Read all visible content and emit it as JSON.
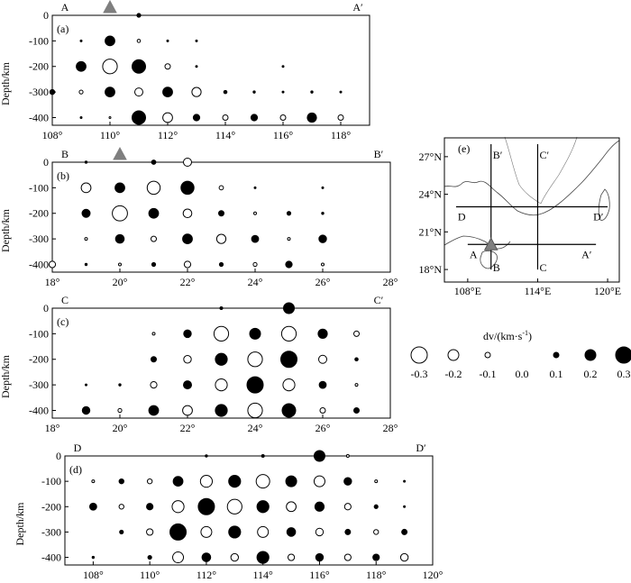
{
  "figure_label": "",
  "chart_data": [
    {
      "id": "a",
      "type": "scatter",
      "panel_label": "(a)",
      "start_label": "A",
      "end_label": "A′",
      "xlabel": "",
      "ylabel": "Depth/km",
      "xlim": [
        108,
        119
      ],
      "ylim": [
        0,
        430
      ],
      "xticks": [
        108,
        110,
        112,
        114,
        116,
        118
      ],
      "xtick_labels": [
        "108°",
        "110°",
        "112°",
        "114°",
        "116°",
        "118°"
      ],
      "yticks": [
        0,
        100,
        200,
        300,
        400
      ],
      "ytick_labels": [
        "0",
        "-100",
        "-200",
        "-300",
        "-400"
      ],
      "volcano_x": 110,
      "points": [
        {
          "x": 111,
          "depth": 0,
          "dv": 0.07
        },
        {
          "x": 109,
          "depth": 100,
          "dv": 0.03
        },
        {
          "x": 110,
          "depth": 100,
          "dv": 0.18
        },
        {
          "x": 111,
          "depth": 100,
          "dv": -0.06
        },
        {
          "x": 112,
          "depth": 100,
          "dv": 0.02
        },
        {
          "x": 113,
          "depth": 100,
          "dv": 0.01
        },
        {
          "x": 109,
          "depth": 200,
          "dv": 0.18
        },
        {
          "x": 110,
          "depth": 200,
          "dv": -0.27
        },
        {
          "x": 111,
          "depth": 200,
          "dv": 0.25
        },
        {
          "x": 112,
          "depth": 200,
          "dv": -0.1
        },
        {
          "x": 113,
          "depth": 200,
          "dv": 0.03
        },
        {
          "x": 116,
          "depth": 200,
          "dv": 0.01
        },
        {
          "x": 108,
          "depth": 300,
          "dv": 0.09
        },
        {
          "x": 109,
          "depth": 300,
          "dv": -0.07
        },
        {
          "x": 110,
          "depth": 300,
          "dv": 0.18
        },
        {
          "x": 111,
          "depth": 300,
          "dv": -0.15
        },
        {
          "x": 112,
          "depth": 300,
          "dv": 0.18
        },
        {
          "x": 113,
          "depth": 300,
          "dv": -0.17
        },
        {
          "x": 114,
          "depth": 300,
          "dv": 0.06
        },
        {
          "x": 115,
          "depth": 300,
          "dv": 0.04
        },
        {
          "x": 116,
          "depth": 300,
          "dv": 0.03
        },
        {
          "x": 117,
          "depth": 300,
          "dv": 0.04
        },
        {
          "x": 118,
          "depth": 300,
          "dv": 0.02
        },
        {
          "x": 109,
          "depth": 400,
          "dv": 0.02
        },
        {
          "x": 110,
          "depth": 400,
          "dv": -0.02
        },
        {
          "x": 111,
          "depth": 400,
          "dv": 0.25
        },
        {
          "x": 112,
          "depth": 400,
          "dv": -0.18
        },
        {
          "x": 113,
          "depth": 400,
          "dv": 0.12
        },
        {
          "x": 114,
          "depth": 400,
          "dv": -0.1
        },
        {
          "x": 115,
          "depth": 400,
          "dv": 0.12
        },
        {
          "x": 116,
          "depth": 400,
          "dv": -0.1
        },
        {
          "x": 117,
          "depth": 400,
          "dv": 0.17
        },
        {
          "x": 118,
          "depth": 400,
          "dv": -0.1
        }
      ]
    },
    {
      "id": "b",
      "type": "scatter",
      "panel_label": "(b)",
      "start_label": "B",
      "end_label": "B′",
      "xlabel": "",
      "ylabel": "Depth/km",
      "xlim": [
        18,
        28
      ],
      "ylim": [
        0,
        430
      ],
      "xticks": [
        18,
        20,
        22,
        24,
        26,
        28
      ],
      "xtick_labels": [
        "18°",
        "20°",
        "22°",
        "24°",
        "26°",
        "28°"
      ],
      "yticks": [
        0,
        100,
        200,
        300,
        400
      ],
      "ytick_labels": [
        "0",
        "-100",
        "-200",
        "-300",
        "-400"
      ],
      "volcano_x": 20,
      "points": [
        {
          "x": 19,
          "depth": 0,
          "dv": 0.04
        },
        {
          "x": 21,
          "depth": 0,
          "dv": 0.08
        },
        {
          "x": 22,
          "depth": 0,
          "dv": -0.15
        },
        {
          "x": 19,
          "depth": 100,
          "dv": -0.18
        },
        {
          "x": 20,
          "depth": 100,
          "dv": 0.18
        },
        {
          "x": 21,
          "depth": 100,
          "dv": -0.24
        },
        {
          "x": 22,
          "depth": 100,
          "dv": 0.24
        },
        {
          "x": 23,
          "depth": 100,
          "dv": -0.08
        },
        {
          "x": 24,
          "depth": 100,
          "dv": 0.03
        },
        {
          "x": 26,
          "depth": 100,
          "dv": 0.02
        },
        {
          "x": 19,
          "depth": 200,
          "dv": 0.15
        },
        {
          "x": 20,
          "depth": 200,
          "dv": -0.28
        },
        {
          "x": 21,
          "depth": 200,
          "dv": 0.18
        },
        {
          "x": 22,
          "depth": 200,
          "dv": -0.16
        },
        {
          "x": 23,
          "depth": 200,
          "dv": 0.1
        },
        {
          "x": 24,
          "depth": 200,
          "dv": -0.05
        },
        {
          "x": 25,
          "depth": 200,
          "dv": 0.07
        },
        {
          "x": 26,
          "depth": 200,
          "dv": 0.04
        },
        {
          "x": 19,
          "depth": 300,
          "dv": -0.05
        },
        {
          "x": 20,
          "depth": 300,
          "dv": 0.16
        },
        {
          "x": 21,
          "depth": 300,
          "dv": -0.1
        },
        {
          "x": 22,
          "depth": 300,
          "dv": 0.18
        },
        {
          "x": 23,
          "depth": 300,
          "dv": -0.17
        },
        {
          "x": 24,
          "depth": 300,
          "dv": 0.13
        },
        {
          "x": 25,
          "depth": 300,
          "dv": -0.05
        },
        {
          "x": 26,
          "depth": 300,
          "dv": 0.14
        },
        {
          "x": 18,
          "depth": 400,
          "dv": -0.12
        },
        {
          "x": 19,
          "depth": 400,
          "dv": 0.04
        },
        {
          "x": 20,
          "depth": 400,
          "dv": -0.05
        },
        {
          "x": 21,
          "depth": 400,
          "dv": 0.07
        },
        {
          "x": 22,
          "depth": 400,
          "dv": -0.12
        },
        {
          "x": 23,
          "depth": 400,
          "dv": 0.07
        },
        {
          "x": 24,
          "depth": 400,
          "dv": -0.07
        },
        {
          "x": 25,
          "depth": 400,
          "dv": 0.12
        },
        {
          "x": 26,
          "depth": 400,
          "dv": -0.05
        }
      ]
    },
    {
      "id": "c",
      "type": "scatter",
      "panel_label": "(c)",
      "start_label": "C",
      "end_label": "C′",
      "xlabel": "",
      "ylabel": "Depth/km",
      "xlim": [
        18,
        28
      ],
      "ylim": [
        0,
        430
      ],
      "xticks": [
        18,
        20,
        22,
        24,
        26,
        28
      ],
      "xtick_labels": [
        "18°",
        "20°",
        "22°",
        "24°",
        "26°",
        "28°"
      ],
      "yticks": [
        0,
        100,
        200,
        300,
        400
      ],
      "ytick_labels": [
        "0",
        "-100",
        "-200",
        "-300",
        "-400"
      ],
      "volcano_x": null,
      "points": [
        {
          "x": 23,
          "depth": 0,
          "dv": 0.05
        },
        {
          "x": 25,
          "depth": 0,
          "dv": 0.2
        },
        {
          "x": 21,
          "depth": 100,
          "dv": -0.05
        },
        {
          "x": 22,
          "depth": 100,
          "dv": 0.14
        },
        {
          "x": 23,
          "depth": 100,
          "dv": -0.27
        },
        {
          "x": 24,
          "depth": 100,
          "dv": 0.2
        },
        {
          "x": 25,
          "depth": 100,
          "dv": -0.27
        },
        {
          "x": 26,
          "depth": 100,
          "dv": 0.17
        },
        {
          "x": 27,
          "depth": 100,
          "dv": -0.1
        },
        {
          "x": 21,
          "depth": 200,
          "dv": 0.1
        },
        {
          "x": 22,
          "depth": 200,
          "dv": -0.14
        },
        {
          "x": 23,
          "depth": 200,
          "dv": 0.22
        },
        {
          "x": 24,
          "depth": 200,
          "dv": -0.27
        },
        {
          "x": 25,
          "depth": 200,
          "dv": 0.3
        },
        {
          "x": 26,
          "depth": 200,
          "dv": -0.15
        },
        {
          "x": 27,
          "depth": 200,
          "dv": 0.06
        },
        {
          "x": 19,
          "depth": 300,
          "dv": 0.03
        },
        {
          "x": 20,
          "depth": 300,
          "dv": 0.04
        },
        {
          "x": 21,
          "depth": 300,
          "dv": -0.12
        },
        {
          "x": 22,
          "depth": 300,
          "dv": 0.15
        },
        {
          "x": 23,
          "depth": 300,
          "dv": -0.22
        },
        {
          "x": 24,
          "depth": 300,
          "dv": 0.3
        },
        {
          "x": 25,
          "depth": 300,
          "dv": -0.22
        },
        {
          "x": 26,
          "depth": 300,
          "dv": 0.13
        },
        {
          "x": 27,
          "depth": 300,
          "dv": -0.05
        },
        {
          "x": 19,
          "depth": 400,
          "dv": 0.14
        },
        {
          "x": 20,
          "depth": 400,
          "dv": -0.07
        },
        {
          "x": 21,
          "depth": 400,
          "dv": 0.18
        },
        {
          "x": 22,
          "depth": 400,
          "dv": -0.18
        },
        {
          "x": 23,
          "depth": 400,
          "dv": 0.22
        },
        {
          "x": 24,
          "depth": 400,
          "dv": -0.27
        },
        {
          "x": 25,
          "depth": 400,
          "dv": 0.25
        },
        {
          "x": 26,
          "depth": 400,
          "dv": -0.1
        },
        {
          "x": 27,
          "depth": 400,
          "dv": 0.1
        }
      ]
    },
    {
      "id": "d",
      "type": "scatter",
      "panel_label": "(d)",
      "start_label": "D",
      "end_label": "D′",
      "xlabel": "",
      "ylabel": "Depth/km",
      "xlim": [
        107,
        120
      ],
      "ylim": [
        0,
        430
      ],
      "xticks": [
        108,
        110,
        112,
        114,
        116,
        118,
        120
      ],
      "xtick_labels": [
        "108°",
        "110°",
        "112°",
        "114°",
        "116°",
        "118°",
        "120°"
      ],
      "yticks": [
        0,
        100,
        200,
        300,
        400
      ],
      "ytick_labels": [
        "0",
        "-100",
        "-200",
        "-300",
        "-400"
      ],
      "volcano_x": null,
      "points": [
        {
          "x": 112,
          "depth": 0,
          "dv": 0.04
        },
        {
          "x": 114,
          "depth": 0,
          "dv": 0.05
        },
        {
          "x": 116,
          "depth": 0,
          "dv": 0.2
        },
        {
          "x": 117,
          "depth": 0,
          "dv": -0.05
        },
        {
          "x": 108,
          "depth": 100,
          "dv": -0.05
        },
        {
          "x": 109,
          "depth": 100,
          "dv": 0.09
        },
        {
          "x": 110,
          "depth": 100,
          "dv": -0.09
        },
        {
          "x": 111,
          "depth": 100,
          "dv": 0.18
        },
        {
          "x": 112,
          "depth": 100,
          "dv": -0.22
        },
        {
          "x": 113,
          "depth": 100,
          "dv": 0.22
        },
        {
          "x": 114,
          "depth": 100,
          "dv": -0.25
        },
        {
          "x": 115,
          "depth": 100,
          "dv": 0.2
        },
        {
          "x": 116,
          "depth": 100,
          "dv": -0.2
        },
        {
          "x": 117,
          "depth": 100,
          "dv": 0.14
        },
        {
          "x": 118,
          "depth": 100,
          "dv": -0.05
        },
        {
          "x": 119,
          "depth": 100,
          "dv": 0.02
        },
        {
          "x": 108,
          "depth": 200,
          "dv": 0.13
        },
        {
          "x": 109,
          "depth": 200,
          "dv": -0.09
        },
        {
          "x": 110,
          "depth": 200,
          "dv": 0.12
        },
        {
          "x": 111,
          "depth": 200,
          "dv": -0.22
        },
        {
          "x": 112,
          "depth": 200,
          "dv": 0.3
        },
        {
          "x": 113,
          "depth": 200,
          "dv": -0.27
        },
        {
          "x": 114,
          "depth": 200,
          "dv": 0.22
        },
        {
          "x": 115,
          "depth": 200,
          "dv": -0.18
        },
        {
          "x": 116,
          "depth": 200,
          "dv": 0.17
        },
        {
          "x": 117,
          "depth": 200,
          "dv": -0.12
        },
        {
          "x": 118,
          "depth": 200,
          "dv": 0.07
        },
        {
          "x": 119,
          "depth": 200,
          "dv": 0.02
        },
        {
          "x": 109,
          "depth": 300,
          "dv": 0.07
        },
        {
          "x": 110,
          "depth": 300,
          "dv": -0.12
        },
        {
          "x": 111,
          "depth": 300,
          "dv": 0.3
        },
        {
          "x": 112,
          "depth": 300,
          "dv": -0.2
        },
        {
          "x": 113,
          "depth": 300,
          "dv": 0.22
        },
        {
          "x": 114,
          "depth": 300,
          "dv": -0.2
        },
        {
          "x": 115,
          "depth": 300,
          "dv": 0.16
        },
        {
          "x": 116,
          "depth": 300,
          "dv": -0.14
        },
        {
          "x": 117,
          "depth": 300,
          "dv": 0.1
        },
        {
          "x": 118,
          "depth": 300,
          "dv": -0.09
        },
        {
          "x": 119,
          "depth": 300,
          "dv": 0.1
        },
        {
          "x": 108,
          "depth": 400,
          "dv": 0.04
        },
        {
          "x": 110,
          "depth": 400,
          "dv": 0.07
        },
        {
          "x": 111,
          "depth": 400,
          "dv": -0.2
        },
        {
          "x": 112,
          "depth": 400,
          "dv": 0.16
        },
        {
          "x": 113,
          "depth": 400,
          "dv": -0.14
        },
        {
          "x": 114,
          "depth": 400,
          "dv": 0.22
        },
        {
          "x": 115,
          "depth": 400,
          "dv": -0.12
        },
        {
          "x": 116,
          "depth": 400,
          "dv": 0.14
        },
        {
          "x": 117,
          "depth": 400,
          "dv": -0.12
        },
        {
          "x": 118,
          "depth": 400,
          "dv": 0.12
        },
        {
          "x": 119,
          "depth": 400,
          "dv": -0.14
        }
      ]
    }
  ],
  "map": {
    "label": "(e)",
    "lon_range": [
      106,
      121
    ],
    "lat_range": [
      17,
      28.5
    ],
    "xtick_labels": [
      "108°E",
      "114°E",
      "120°E"
    ],
    "xticks": [
      108,
      114,
      120
    ],
    "ytick_labels": [
      "18°N",
      "21°N",
      "24°N",
      "27°N"
    ],
    "yticks": [
      18,
      21,
      24,
      27
    ],
    "profiles": [
      {
        "start": "A",
        "end": "A′",
        "from": [
          108,
          20
        ],
        "to": [
          119,
          20
        ]
      },
      {
        "start": "B",
        "end": "B′",
        "from": [
          110,
          18
        ],
        "to": [
          110,
          28
        ]
      },
      {
        "start": "C",
        "end": "C′",
        "from": [
          114,
          18
        ],
        "to": [
          114,
          28
        ]
      },
      {
        "start": "D",
        "end": "D′",
        "from": [
          107,
          23
        ],
        "to": [
          120,
          23
        ]
      }
    ],
    "volcano": [
      110,
      20
    ]
  },
  "legend": {
    "title": "dv/(km·s⁻¹)",
    "title_main": "dv/(km·s",
    "title_sup": "-1",
    "title_end": ")",
    "values": [
      -0.3,
      -0.2,
      -0.1,
      0.0,
      0.1,
      0.2,
      0.3
    ],
    "labels": [
      "-0.3",
      "-0.2",
      "-0.1",
      "0.0",
      "0.1",
      "0.2",
      "0.3"
    ]
  },
  "colors": {
    "positive_fill": "#000000",
    "negative_fill": "#ffffff",
    "volcano": "#7f7f7f",
    "line": "#000000"
  }
}
